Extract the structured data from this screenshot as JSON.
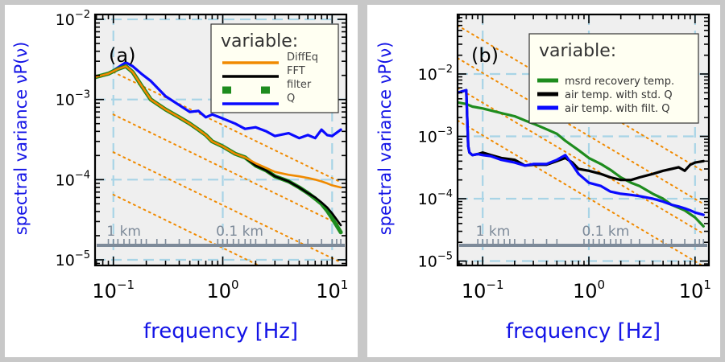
{
  "colors": {
    "background": "#c8c8c8",
    "plot_bg": "#efefef",
    "guide": "#a8d4e6",
    "reference_line": "#f08a00",
    "distance_axis": "#7d8a99",
    "axis_label": "#1414e6",
    "legend_bg": "#fffff2"
  },
  "chart_data": [
    {
      "type": "line",
      "id": "a",
      "panel_label": "(a)",
      "xlabel": "frequency [Hz]",
      "ylabel": "spectral variance νP(ν)",
      "xscale": "log",
      "yscale": "log",
      "xlim": [
        0.068,
        13.5
      ],
      "ylim": [
        8.5e-06,
        0.0115
      ],
      "x_ticks": [
        {
          "value": 0.1,
          "label": "10",
          "exp": "−1"
        },
        {
          "value": 1,
          "label": "10",
          "exp": "0"
        },
        {
          "value": 10,
          "label": "10",
          "exp": "1"
        }
      ],
      "y_ticks": [
        {
          "value": 1e-05,
          "label": "10",
          "exp": "−5"
        },
        {
          "value": 0.0001,
          "label": "10",
          "exp": "−4"
        },
        {
          "value": 0.001,
          "label": "10",
          "exp": "−3"
        },
        {
          "value": 0.01,
          "label": "10",
          "exp": "−2"
        }
      ],
      "grid": "dashed",
      "distance_labels": [
        {
          "value": 0.11,
          "label": "1 km"
        },
        {
          "value": 1.1,
          "label": "0.1 km"
        }
      ],
      "reference_lines": [
        {
          "x": [
            0.1,
            12
          ],
          "y": [
            0.0022,
            9.3e-05
          ]
        },
        {
          "x": [
            0.1,
            12
          ],
          "y": [
            0.00065,
            2.7e-05
          ]
        },
        {
          "x": [
            0.1,
            12
          ],
          "y": [
            0.00022,
            9.3e-06
          ]
        },
        {
          "x": [
            0.1,
            12
          ],
          "y": [
            6.5e-05,
            2.7e-06
          ]
        }
      ],
      "legend": {
        "title": "variable:",
        "position": "top-right",
        "entries": [
          {
            "label": "DiffEq",
            "color": "#f08a00",
            "style": "solid"
          },
          {
            "label": "FFT",
            "color": "#000000",
            "style": "solid"
          },
          {
            "label": "filter",
            "color": "#1e8c1e",
            "style": "dashed"
          },
          {
            "label": "Q",
            "color": "#0a0aff",
            "style": "solid"
          }
        ]
      },
      "series": [
        {
          "name": "Q",
          "color": "#0a0aff",
          "width": 3.2,
          "x": [
            0.068,
            0.09,
            0.11,
            0.13,
            0.15,
            0.18,
            0.22,
            0.3,
            0.4,
            0.5,
            0.6,
            0.7,
            0.8,
            1.0,
            1.3,
            1.6,
            2.0,
            2.5,
            3.0,
            4.0,
            5.0,
            6.0,
            7.0,
            8.0,
            9.0,
            10.0,
            12.0
          ],
          "y": [
            0.0019,
            0.0021,
            0.0025,
            0.0029,
            0.0026,
            0.0021,
            0.0017,
            0.0011,
            0.00085,
            0.0007,
            0.00072,
            0.0006,
            0.00065,
            0.00058,
            0.0005,
            0.00043,
            0.00045,
            0.0004,
            0.00035,
            0.00038,
            0.00033,
            0.00036,
            0.00033,
            0.00042,
            0.00036,
            0.00035,
            0.00042
          ]
        },
        {
          "name": "filter",
          "color": "#1e8c1e",
          "width": 5,
          "x": [
            0.068,
            0.09,
            0.11,
            0.13,
            0.15,
            0.18,
            0.22,
            0.3,
            0.4,
            0.5,
            0.6,
            0.7,
            0.8,
            1.0,
            1.3,
            1.6,
            2.0,
            2.5,
            3.0,
            4.0,
            5.0,
            6.0,
            7.0,
            8.0,
            9.0,
            10.0,
            12.0
          ],
          "y": [
            0.0019,
            0.0021,
            0.0024,
            0.0026,
            0.0022,
            0.0015,
            0.001,
            0.00075,
            0.0006,
            0.0005,
            0.00042,
            0.00036,
            0.0003,
            0.00026,
            0.00021,
            0.00019,
            0.00015,
            0.00013,
            0.00011,
            9.5e-05,
            8e-05,
            6.8e-05,
            5.8e-05,
            5e-05,
            4.1e-05,
            3.3e-05,
            2.2e-05
          ]
        },
        {
          "name": "FFT",
          "color": "#000000",
          "width": 2.6,
          "x": [
            0.068,
            0.09,
            0.11,
            0.13,
            0.15,
            0.18,
            0.22,
            0.3,
            0.4,
            0.5,
            0.6,
            0.7,
            0.8,
            1.0,
            1.3,
            1.6,
            2.0,
            2.5,
            3.0,
            4.0,
            5.0,
            6.0,
            7.0,
            8.0,
            9.0,
            10.0,
            12.0
          ],
          "y": [
            0.0019,
            0.0021,
            0.0024,
            0.0026,
            0.0022,
            0.0015,
            0.001,
            0.00075,
            0.0006,
            0.0005,
            0.00042,
            0.00036,
            0.0003,
            0.00026,
            0.00021,
            0.00019,
            0.00015,
            0.00013,
            0.00011,
            9.5e-05,
            8e-05,
            6.8e-05,
            6e-05,
            5.2e-05,
            4.5e-05,
            3.8e-05,
            2.7e-05
          ]
        },
        {
          "name": "DiffEq",
          "color": "#f08a00",
          "width": 2.6,
          "x": [
            0.068,
            0.09,
            0.11,
            0.13,
            0.15,
            0.18,
            0.22,
            0.3,
            0.4,
            0.5,
            0.6,
            0.7,
            0.8,
            1.0,
            1.3,
            1.6,
            2.0,
            2.5,
            3.0,
            4.0,
            5.0,
            6.0,
            7.0,
            8.0,
            9.0,
            10.0,
            12.0
          ],
          "y": [
            0.0019,
            0.0021,
            0.0024,
            0.0026,
            0.0022,
            0.0015,
            0.001,
            0.00075,
            0.0006,
            0.0005,
            0.00042,
            0.00036,
            0.0003,
            0.00026,
            0.00021,
            0.00019,
            0.00016,
            0.00014,
            0.000125,
            0.000115,
            0.00011,
            0.000105,
            0.0001,
            9.5e-05,
            9e-05,
            8.5e-05,
            8e-05
          ]
        }
      ]
    },
    {
      "type": "line",
      "id": "b",
      "panel_label": "(b)",
      "xlabel": "frequency [Hz]",
      "ylabel": "spectral variance νP(ν)",
      "xscale": "log",
      "yscale": "log",
      "xlim": [
        0.058,
        13.5
      ],
      "ylim": [
        8.5e-06,
        0.09
      ],
      "x_ticks": [
        {
          "value": 0.1,
          "label": "10",
          "exp": "−1"
        },
        {
          "value": 1,
          "label": "10",
          "exp": "0"
        },
        {
          "value": 10,
          "label": "10",
          "exp": "1"
        }
      ],
      "y_ticks": [
        {
          "value": 1e-05,
          "label": "10",
          "exp": "−5"
        },
        {
          "value": 0.0001,
          "label": "10",
          "exp": "−4"
        },
        {
          "value": 0.001,
          "label": "10",
          "exp": "−3"
        },
        {
          "value": 0.01,
          "label": "10",
          "exp": "−2"
        }
      ],
      "grid": "dashed",
      "distance_labels": [
        {
          "value": 0.11,
          "label": "1 km"
        },
        {
          "value": 1.1,
          "label": "0.1 km"
        }
      ],
      "reference_lines": [
        {
          "x": [
            0.058,
            12
          ],
          "y": [
            0.06,
            0.000275
          ]
        },
        {
          "x": [
            0.058,
            12
          ],
          "y": [
            0.018,
            8.25e-05
          ]
        },
        {
          "x": [
            0.058,
            12
          ],
          "y": [
            0.006,
            2.75e-05
          ]
        },
        {
          "x": [
            0.058,
            12
          ],
          "y": [
            0.0018,
            8.25e-06
          ]
        }
      ],
      "legend": {
        "title": "variable:",
        "position": "top-right",
        "entries": [
          {
            "label": "msrd recovery temp.",
            "color": "#1e8c1e",
            "style": "solid"
          },
          {
            "label": "air temp. with std. Q",
            "color": "#000000",
            "style": "solid"
          },
          {
            "label": "air temp. with filt. Q",
            "color": "#0a0aff",
            "style": "solid"
          }
        ]
      },
      "series": [
        {
          "name": "msrd recovery temp.",
          "color": "#1e8c1e",
          "width": 3.2,
          "x": [
            0.058,
            0.07,
            0.08,
            0.1,
            0.13,
            0.16,
            0.2,
            0.25,
            0.3,
            0.4,
            0.5,
            0.6,
            0.8,
            1.0,
            1.3,
            1.6,
            2.0,
            2.5,
            3.0,
            4.0,
            5.0,
            6.0,
            8.0,
            10.0,
            12.0
          ],
          "y": [
            0.0035,
            0.0033,
            0.003,
            0.0028,
            0.0025,
            0.0023,
            0.0021,
            0.0018,
            0.0016,
            0.0013,
            0.0011,
            0.00085,
            0.0006,
            0.00045,
            0.00036,
            0.00029,
            0.00022,
            0.00018,
            0.00016,
            0.00012,
            0.0001,
            8e-05,
            6.5e-05,
            5e-05,
            3.6e-05
          ]
        },
        {
          "name": "air temp. with std. Q",
          "color": "#000000",
          "width": 3.2,
          "x": [
            0.058,
            0.07,
            0.073,
            0.075,
            0.08,
            0.09,
            0.1,
            0.12,
            0.15,
            0.2,
            0.25,
            0.3,
            0.4,
            0.5,
            0.6,
            0.7,
            0.8,
            1.0,
            1.3,
            1.6,
            2.0,
            2.5,
            3.0,
            4.0,
            5.0,
            6.0,
            7.0,
            8.0,
            9.0,
            10.0,
            12.0
          ],
          "y": [
            0.005,
            0.0055,
            0.0007,
            0.00055,
            0.0005,
            0.00052,
            0.00055,
            0.0005,
            0.00045,
            0.00042,
            0.00034,
            0.00035,
            0.00035,
            0.0004,
            0.00045,
            0.00038,
            0.0003,
            0.00028,
            0.00025,
            0.00022,
            0.0002,
            0.0002,
            0.00022,
            0.00025,
            0.00028,
            0.0003,
            0.00032,
            0.00028,
            0.00035,
            0.00038,
            0.0004
          ]
        },
        {
          "name": "air temp. with filt. Q",
          "color": "#0a0aff",
          "width": 3.2,
          "x": [
            0.058,
            0.07,
            0.073,
            0.075,
            0.08,
            0.09,
            0.1,
            0.12,
            0.15,
            0.2,
            0.25,
            0.3,
            0.4,
            0.5,
            0.6,
            0.7,
            0.8,
            1.0,
            1.3,
            1.6,
            2.0,
            2.5,
            3.0,
            4.0,
            5.0,
            6.0,
            7.0,
            8.0,
            9.0,
            10.0,
            12.0
          ],
          "y": [
            0.005,
            0.0055,
            0.0007,
            0.00055,
            0.0005,
            0.00052,
            0.0005,
            0.00048,
            0.00042,
            0.00038,
            0.00034,
            0.00036,
            0.00036,
            0.00042,
            0.0005,
            0.00035,
            0.00025,
            0.00018,
            0.00016,
            0.00013,
            0.00012,
            0.000115,
            0.00011,
            0.0001,
            9e-05,
            8e-05,
            7.5e-05,
            7e-05,
            6.5e-05,
            6e-05,
            5.5e-05
          ]
        }
      ]
    }
  ]
}
